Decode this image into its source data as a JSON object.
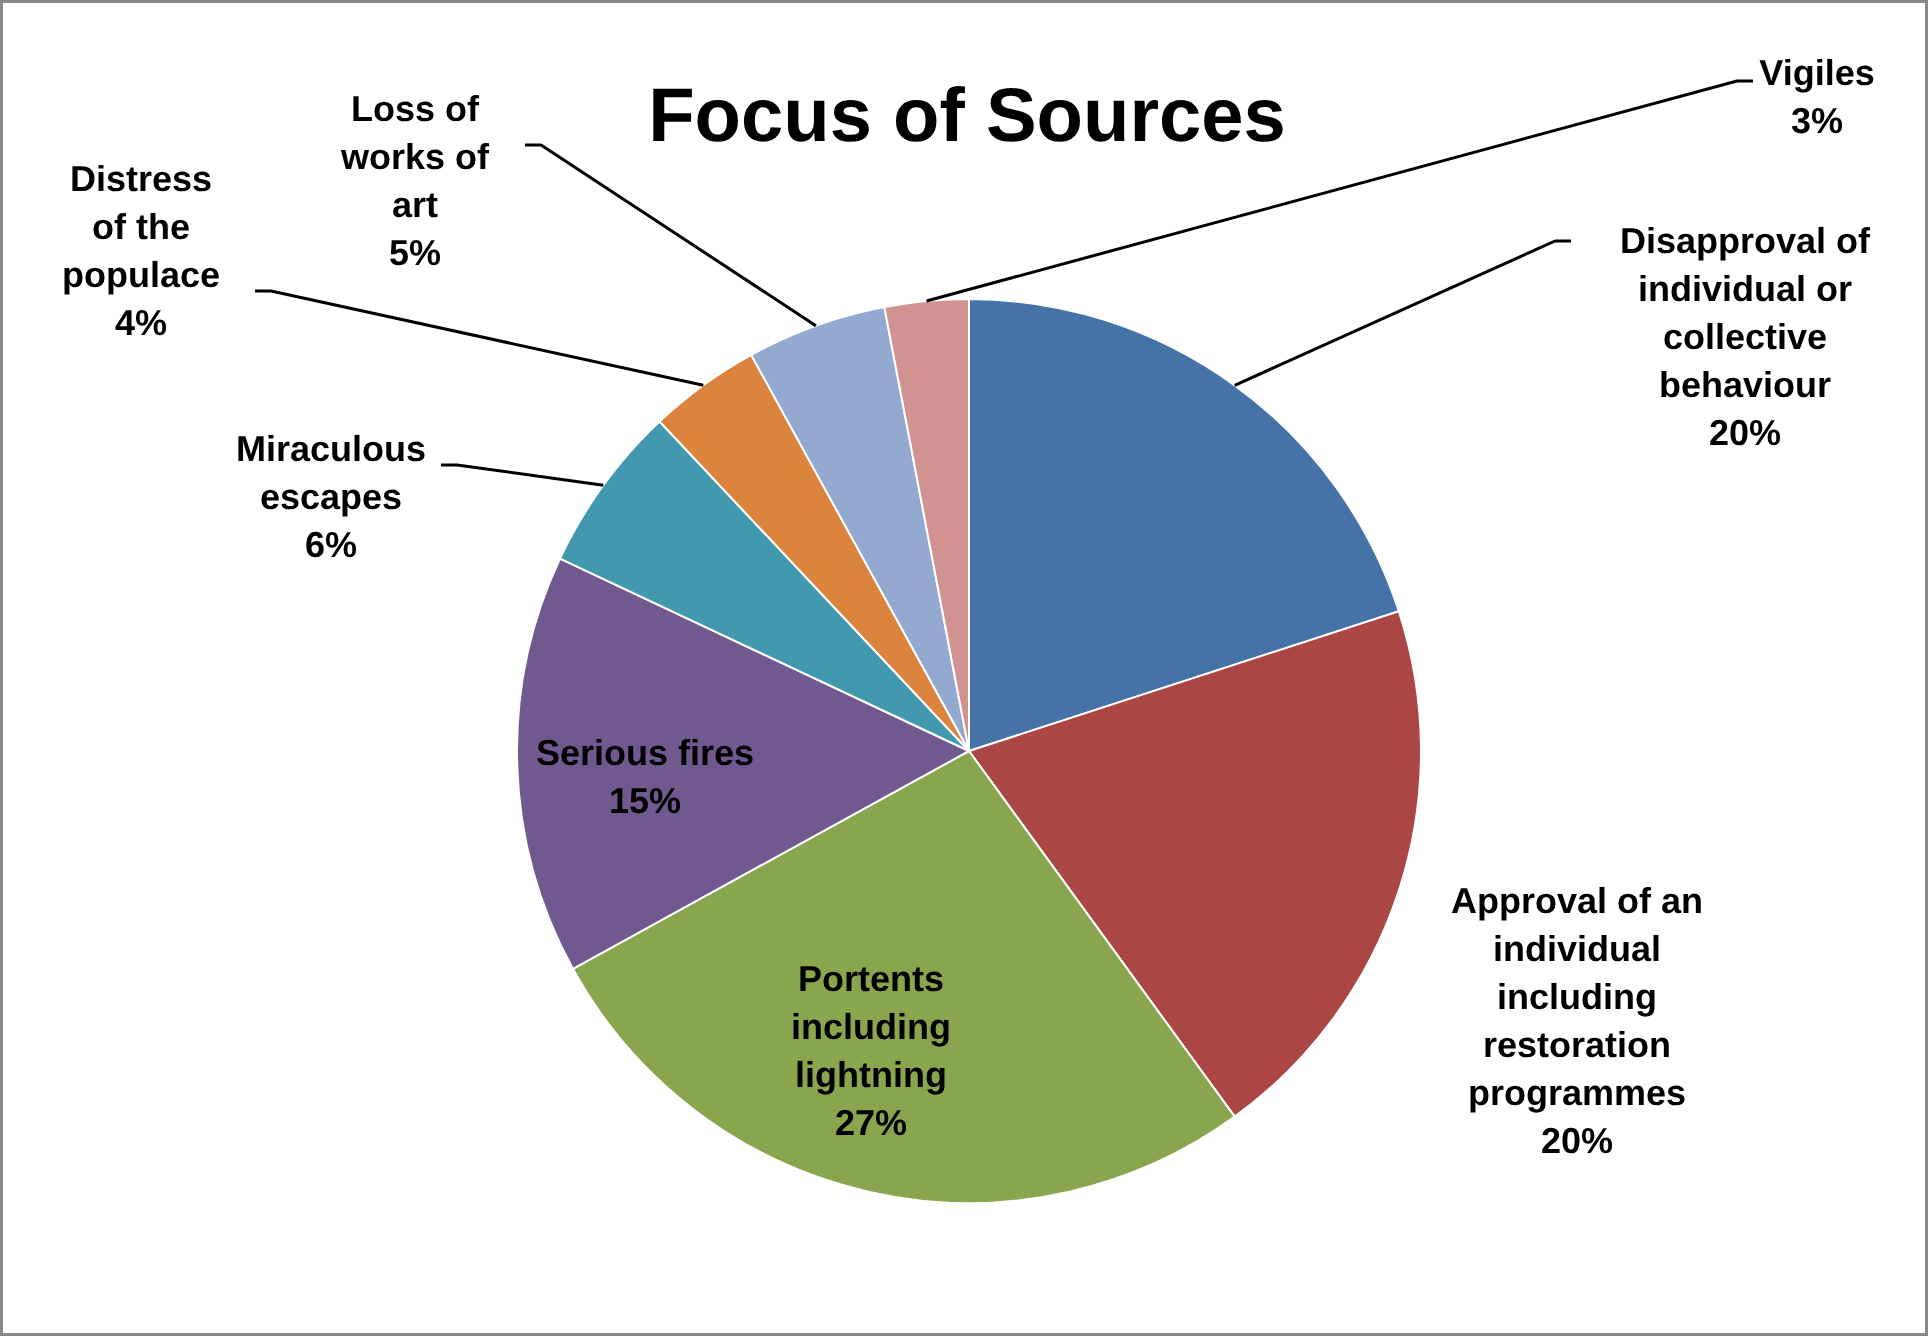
{
  "chart_data": {
    "type": "pie",
    "title": "Focus of Sources",
    "categories": [
      "Disapproval of individual or collective behaviour",
      "Approval of an individual including restoration programmes",
      "Portents including lightning",
      "Serious fires",
      "Miraculous escapes",
      "Distress of the populace",
      "Loss of works of art",
      "Vigiles"
    ],
    "values": [
      20,
      20,
      27,
      15,
      6,
      4,
      5,
      3
    ],
    "value_labels": [
      "20%",
      "20%",
      "27%",
      "15%",
      "6%",
      "4%",
      "5%",
      "3%"
    ],
    "colors": [
      "#4572a7",
      "#aa4643",
      "#89a54e",
      "#71588f",
      "#4198af",
      "#db843d",
      "#93a9cf",
      "#d19392"
    ]
  }
}
